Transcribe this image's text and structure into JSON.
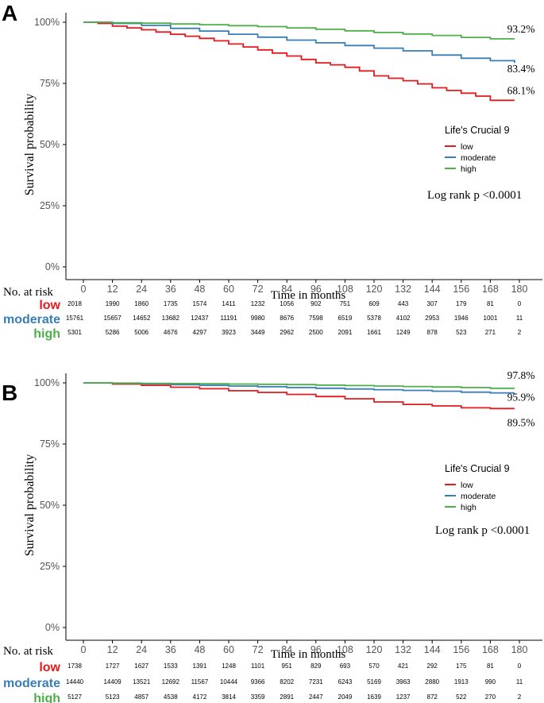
{
  "colors": {
    "low": "#e41a1c",
    "moderate": "#377eb8",
    "high": "#4daf4a",
    "axis": "#000000",
    "text": "#000000",
    "tick": "#555555"
  },
  "risk_table_title": "No. at risk",
  "chart_data": [
    {
      "panel": "A",
      "type": "line",
      "title": "",
      "xlabel": "Time in months",
      "ylabel": "Survival probability",
      "xlim": [
        0,
        180
      ],
      "ylim": [
        0,
        1
      ],
      "x_ticks": [
        0,
        12,
        24,
        36,
        48,
        60,
        72,
        84,
        96,
        108,
        120,
        132,
        144,
        156,
        168,
        180
      ],
      "y_ticks": [
        0,
        0.25,
        0.5,
        0.75,
        1.0
      ],
      "y_tick_labels": [
        "0%",
        "25%",
        "50%",
        "75%",
        "100%"
      ],
      "legend_title": "Life's Crucial 9",
      "legend_position": "right",
      "annotation": "Log rank p <0.0001",
      "series": [
        {
          "name": "low",
          "end_label": "68.1%",
          "points": [
            [
              0,
              1.0
            ],
            [
              6,
              0.995
            ],
            [
              12,
              0.984
            ],
            [
              18,
              0.977
            ],
            [
              24,
              0.969
            ],
            [
              30,
              0.96
            ],
            [
              36,
              0.951
            ],
            [
              42,
              0.943
            ],
            [
              48,
              0.934
            ],
            [
              54,
              0.924
            ],
            [
              60,
              0.911
            ],
            [
              66,
              0.899
            ],
            [
              72,
              0.887
            ],
            [
              78,
              0.874
            ],
            [
              84,
              0.862
            ],
            [
              90,
              0.848
            ],
            [
              96,
              0.834
            ],
            [
              102,
              0.826
            ],
            [
              108,
              0.816
            ],
            [
              114,
              0.801
            ],
            [
              120,
              0.781
            ],
            [
              126,
              0.771
            ],
            [
              132,
              0.761
            ],
            [
              138,
              0.748
            ],
            [
              144,
              0.732
            ],
            [
              150,
              0.721
            ],
            [
              156,
              0.71
            ],
            [
              162,
              0.698
            ],
            [
              168,
              0.681
            ],
            [
              174,
              0.681
            ],
            [
              178,
              0.681
            ]
          ]
        },
        {
          "name": "moderate",
          "end_label": "83.4%",
          "points": [
            [
              0,
              1.0
            ],
            [
              12,
              0.995
            ],
            [
              24,
              0.987
            ],
            [
              36,
              0.975
            ],
            [
              48,
              0.964
            ],
            [
              60,
              0.951
            ],
            [
              72,
              0.939
            ],
            [
              84,
              0.927
            ],
            [
              96,
              0.916
            ],
            [
              108,
              0.905
            ],
            [
              120,
              0.894
            ],
            [
              132,
              0.883
            ],
            [
              144,
              0.866
            ],
            [
              156,
              0.853
            ],
            [
              168,
              0.843
            ],
            [
              178,
              0.834
            ]
          ]
        },
        {
          "name": "high",
          "end_label": "93.2%",
          "points": [
            [
              0,
              1.0
            ],
            [
              12,
              0.998
            ],
            [
              24,
              0.996
            ],
            [
              36,
              0.993
            ],
            [
              48,
              0.99
            ],
            [
              60,
              0.986
            ],
            [
              72,
              0.982
            ],
            [
              84,
              0.977
            ],
            [
              96,
              0.971
            ],
            [
              108,
              0.965
            ],
            [
              120,
              0.958
            ],
            [
              132,
              0.952
            ],
            [
              144,
              0.946
            ],
            [
              156,
              0.938
            ],
            [
              168,
              0.932
            ],
            [
              178,
              0.932
            ]
          ]
        }
      ],
      "risk_table": [
        {
          "name": "low",
          "values": [
            "2018",
            "1990",
            "1860",
            "1735",
            "1574",
            "1411",
            "1232",
            "1056",
            "902",
            "751",
            "609",
            "443",
            "307",
            "179",
            "81",
            "0"
          ]
        },
        {
          "name": "moderate",
          "values": [
            "15761",
            "15657",
            "14652",
            "13682",
            "12437",
            "11191",
            "9980",
            "8676",
            "7598",
            "6519",
            "5378",
            "4102",
            "2953",
            "1946",
            "1001",
            "11"
          ]
        },
        {
          "name": "high",
          "values": [
            "5301",
            "5286",
            "5006",
            "4676",
            "4297",
            "3923",
            "3449",
            "2962",
            "2500",
            "2091",
            "1661",
            "1249",
            "878",
            "523",
            "271",
            "2"
          ]
        }
      ]
    },
    {
      "panel": "B",
      "type": "line",
      "title": "",
      "xlabel": "Time in months",
      "ylabel": "Survival probability",
      "xlim": [
        0,
        180
      ],
      "ylim": [
        0,
        1
      ],
      "x_ticks": [
        0,
        12,
        24,
        36,
        48,
        60,
        72,
        84,
        96,
        108,
        120,
        132,
        144,
        156,
        168,
        180
      ],
      "y_ticks": [
        0,
        0.25,
        0.5,
        0.75,
        1.0
      ],
      "y_tick_labels": [
        "0%",
        "25%",
        "50%",
        "75%",
        "100%"
      ],
      "legend_title": "Life's Crucial 9",
      "legend_position": "right",
      "annotation": "Log rank p <0.0001",
      "series": [
        {
          "name": "low",
          "end_label": "89.5%",
          "points": [
            [
              0,
              1.0
            ],
            [
              12,
              0.995
            ],
            [
              24,
              0.99
            ],
            [
              36,
              0.982
            ],
            [
              48,
              0.976
            ],
            [
              60,
              0.968
            ],
            [
              72,
              0.961
            ],
            [
              84,
              0.953
            ],
            [
              96,
              0.944
            ],
            [
              108,
              0.935
            ],
            [
              120,
              0.922
            ],
            [
              132,
              0.912
            ],
            [
              144,
              0.906
            ],
            [
              156,
              0.898
            ],
            [
              168,
              0.895
            ],
            [
              178,
              0.895
            ]
          ]
        },
        {
          "name": "moderate",
          "end_label": "95.9%",
          "points": [
            [
              0,
              1.0
            ],
            [
              12,
              0.998
            ],
            [
              24,
              0.996
            ],
            [
              36,
              0.993
            ],
            [
              48,
              0.99
            ],
            [
              60,
              0.987
            ],
            [
              72,
              0.984
            ],
            [
              84,
              0.981
            ],
            [
              96,
              0.978
            ],
            [
              108,
              0.975
            ],
            [
              120,
              0.972
            ],
            [
              132,
              0.969
            ],
            [
              144,
              0.966
            ],
            [
              156,
              0.962
            ],
            [
              168,
              0.959
            ],
            [
              178,
              0.959
            ]
          ]
        },
        {
          "name": "high",
          "end_label": "97.8%",
          "points": [
            [
              0,
              1.0
            ],
            [
              12,
              0.999
            ],
            [
              24,
              0.998
            ],
            [
              36,
              0.997
            ],
            [
              48,
              0.996
            ],
            [
              60,
              0.995
            ],
            [
              72,
              0.994
            ],
            [
              84,
              0.993
            ],
            [
              96,
              0.991
            ],
            [
              108,
              0.989
            ],
            [
              120,
              0.987
            ],
            [
              132,
              0.985
            ],
            [
              144,
              0.983
            ],
            [
              156,
              0.981
            ],
            [
              168,
              0.978
            ],
            [
              178,
              0.978
            ]
          ]
        }
      ],
      "risk_table": [
        {
          "name": "low",
          "values": [
            "1738",
            "1727",
            "1627",
            "1533",
            "1391",
            "1248",
            "1101",
            "951",
            "829",
            "693",
            "570",
            "421",
            "292",
            "175",
            "81",
            "0"
          ]
        },
        {
          "name": "moderate",
          "values": [
            "14440",
            "14409",
            "13521",
            "12692",
            "11567",
            "10444",
            "9366",
            "8202",
            "7231",
            "6243",
            "5169",
            "3963",
            "2880",
            "1913",
            "990",
            "11"
          ]
        },
        {
          "name": "high",
          "values": [
            "5127",
            "5123",
            "4857",
            "4538",
            "4172",
            "3814",
            "3359",
            "2891",
            "2447",
            "2049",
            "1639",
            "1237",
            "872",
            "522",
            "270",
            "2"
          ]
        }
      ]
    }
  ]
}
